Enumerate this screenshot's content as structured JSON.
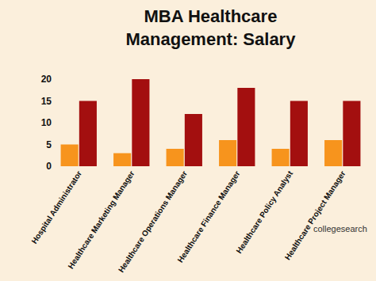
{
  "chart_data": {
    "type": "bar",
    "title": "MBA Healthcare Management: Salary",
    "categories": [
      "Hospital Administrator",
      "Healthcare Marketing Manager",
      "Healthcare Operations Manager",
      "Healthcare Finance Manager",
      "Healthcare Policy Analyst",
      "Healthcare Project Manager"
    ],
    "series": [
      {
        "color": "#f7941d",
        "values": [
          5,
          3,
          4,
          6,
          4,
          6
        ]
      },
      {
        "color": "#a30f0f",
        "values": [
          15,
          20,
          12,
          18,
          15,
          15
        ]
      }
    ],
    "ylim": [
      0,
      20
    ],
    "yticks": [
      0,
      5,
      10,
      15,
      20
    ],
    "grid": false,
    "annotations": [
      "collegesearch"
    ]
  }
}
